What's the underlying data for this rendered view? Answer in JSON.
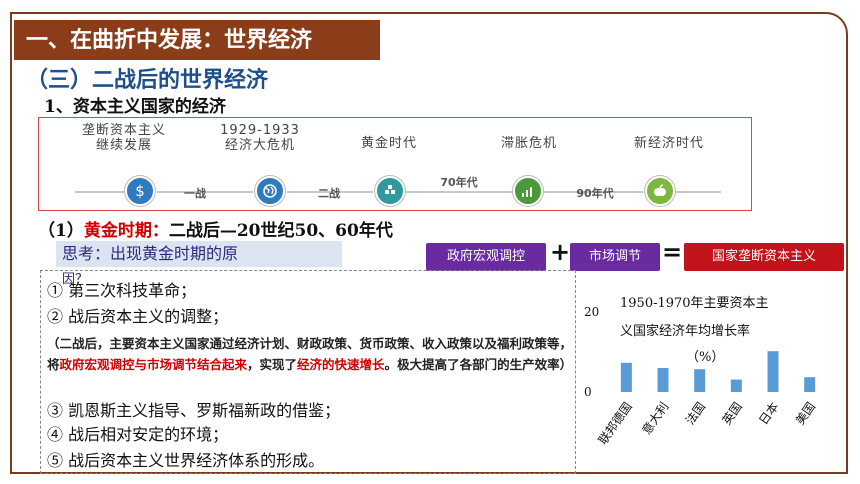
{
  "header": {
    "title": "一、在曲折中发展：世界经济"
  },
  "section": {
    "title": "（三）二战后的世界经济",
    "subtitle": "1、资本主义国家的经济"
  },
  "timeline": {
    "stages": [
      {
        "label_line1": "垄断资本主义",
        "label_line2": "继续发展",
        "icon": "dollar-icon",
        "color": "#2e7bbf"
      },
      {
        "label_line1": "1929-1933",
        "label_line2": "经济大危机",
        "icon": "globe-icon",
        "color": "#2e7bbf"
      },
      {
        "label_line1": "黄金时代",
        "label_line2": "",
        "icon": "pyramid-icon",
        "color": "#2e9aa0"
      },
      {
        "label_line1": "滞胀危机",
        "label_line2": "",
        "icon": "bar-chart-icon",
        "color": "#4a9a3a"
      },
      {
        "label_line1": "新经济时代",
        "label_line2": "",
        "icon": "apple-icon",
        "color": "#7cb840"
      }
    ],
    "separators": [
      "一战",
      "二战",
      "70年代",
      "90年代"
    ]
  },
  "golden": {
    "prefix": "（1）",
    "highlight": "黄金时期：",
    "rest": "二战后—20世纪50、60年代"
  },
  "think": {
    "text": "思考：出现黄金时期的原",
    "overflow": "因？"
  },
  "formula": {
    "term1": "政府宏观调控",
    "op1": "+",
    "term2": "市场调节",
    "op2": "=",
    "result": "国家垄断资本主义"
  },
  "reasons": {
    "r1": "① 第三次科技革命；",
    "r2": "② 战后资本主义的调整；",
    "detail": {
      "p1": "（二战后，主要资本主义国家通过经济计划、财政政策、货币政策、收入政策以及福利政策等，将",
      "p2": "政府宏观调控与市场调节结合起来",
      "p3": "，实现了",
      "p4": "经济的快速增长",
      "p5": "。极大提高了各部门的生产效率）"
    },
    "r3": "③ 凯恩斯主义指导、罗斯福新政的借鉴；",
    "r4": "④ 战后相对安定的环境；",
    "r5": "⑤ 战后资本主义世界经济体系的形成。"
  },
  "chart_data": {
    "type": "bar",
    "title_line1": "1950-1970年主要资本主",
    "title_line2": "义国家经济年均增长率",
    "title_line3": "（%）",
    "categories": [
      "联邦德国",
      "意大利",
      "法国",
      "英国",
      "日本",
      "美国"
    ],
    "values": [
      7.3,
      6.0,
      5.7,
      3.1,
      10.2,
      3.7
    ],
    "ylim": [
      0,
      20
    ],
    "ytick_labels": [
      "20",
      "0"
    ],
    "bar_color": "#5b9bd5"
  }
}
